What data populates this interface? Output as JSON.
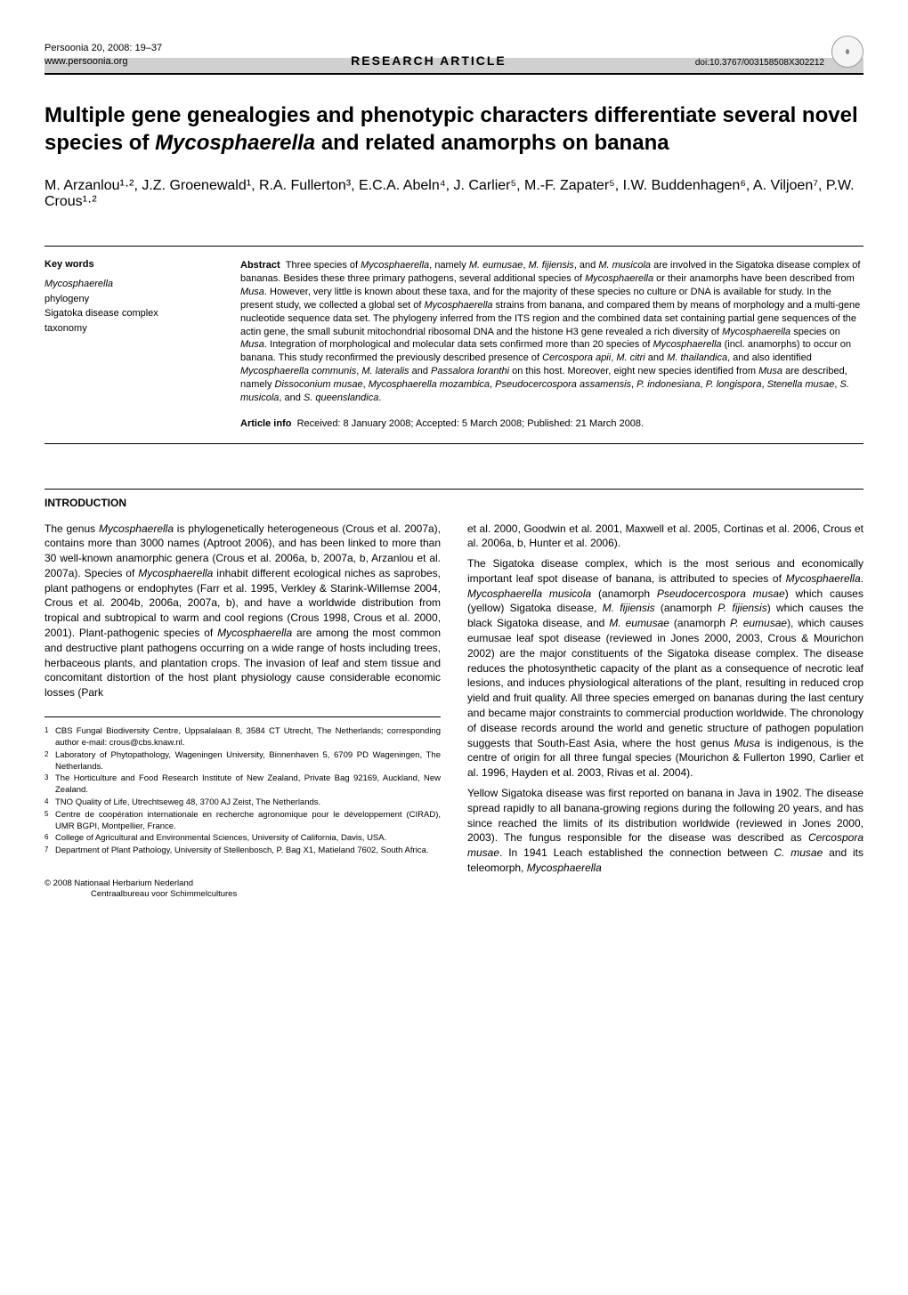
{
  "header": {
    "journal_line": "Persoonia 20, 2008: 19–37",
    "website": "www.persoonia.org",
    "section_label": "RESEARCH  ARTICLE",
    "doi": "doi:10.3767/003158508X302212"
  },
  "title_parts": {
    "pre": "Multiple gene genealogies and phenotypic characters differentiate several novel species of ",
    "italic": "Mycosphaerella",
    "post": " and related anamorphs on banana"
  },
  "authors": "M. Arzanlou¹·², J.Z. Groenewald¹, R.A. Fullerton³, E.C.A. Abeln⁴, J. Carlier⁵, M.-F. Zapater⁵, I.W. Buddenhagen⁶, A. Viljoen⁷, P.W. Crous¹·²",
  "keywords": {
    "heading": "Key words",
    "items": [
      "Mycosphaerella",
      "phylogeny",
      "Sigatoka disease complex",
      "taxonomy"
    ],
    "italic_indices": [
      0
    ]
  },
  "abstract": {
    "label": "Abstract",
    "text_html": "Three species of <em>Mycosphaerella</em>, namely <em>M. eumusae</em>, <em>M. fijiensis</em>, and <em>M. musicola</em> are involved in the Sigatoka disease complex of bananas. Besides these three primary pathogens, several additional species of <em>Mycosphaerella</em> or their anamorphs have been described from <em>Musa</em>. However, very little is known about these taxa, and for the majority of these species no culture or DNA is available for study. In the present study, we collected a global set of <em>Mycosphaerella</em> strains from banana, and compared them by means of morphology and a multi-gene nucleotide sequence data set. The phylogeny inferred from the ITS region and the combined data set containing partial gene sequences of the actin gene, the small subunit mitochondrial ribosomal DNA and the histone H3 gene revealed a rich diversity of <em>Mycosphaerella</em> species on <em>Musa</em>. Integration of morphological and molecular data sets confirmed more than 20 species of <em>Mycosphaerella</em> (incl. anamorphs) to occur on banana. This study reconfirmed the previously described presence of <em>Cercospora apii</em>, <em>M. citri</em> and <em>M. thailandica</em>, and also identified <em>Mycosphaerella communis</em>, <em>M. lateralis</em> and <em>Passalora loranthi</em> on this host. Moreover, eight new species identified from <em>Musa</em> are described, namely <em>Dissoconium musae</em>, <em>Mycosphaerella mozambica</em>, <em>Pseudocercospora assamensis</em>, <em>P. indonesiana</em>, <em>P. longispora</em>, <em>Stenella musae</em>, <em>S. musicola</em>, and <em>S. queenslandica</em>."
  },
  "article_info": {
    "label": "Article info",
    "text": "Received: 8 January 2008; Accepted: 5 March 2008; Published: 21 March 2008."
  },
  "intro_heading": "INTRODUCTION",
  "col_left_html": "The genus <em>Mycosphaerella</em> is phylogenetically heterogeneous (Crous et al. 2007a), contains more than 3000 names (Aptroot 2006), and has been linked to more than 30 well-known anamorphic genera (Crous et al. 2006a, b, 2007a, b, Arzanlou et al. 2007a). Species of <em>Mycosphaerella</em> inhabit different ecological niches as saprobes, plant pathogens or endophytes (Farr et al. 1995, Verkley & Starink-Willemse 2004, Crous et al. 2004b, 2006a, 2007a, b), and have a worldwide distribution from tropical and subtropical to warm and cool regions (Crous 1998, Crous et al. 2000, 2001). Plant-pathogenic species of <em>Mycosphaerella</em> are among the most common and destructive plant pathogens occurring on a wide range of hosts including trees, herbaceous plants, and plantation crops. The invasion of leaf and stem tissue and concomitant distortion of the host plant physiology cause considerable economic losses (Park",
  "col_right_top_html": "et al. 2000, Goodwin et al. 2001, Maxwell et al. 2005, Cortinas et al. 2006, Crous et al. 2006a, b, Hunter et al. 2006).",
  "col_right_p2_html": "The Sigatoka disease complex, which is the most serious and economically important leaf spot disease of banana, is attributed to species of <em>Mycosphaerella</em>. <em>Mycosphaerella musicola</em> (anamorph <em>Pseudocercospora musae</em>) which causes (yellow) Sigatoka disease, <em>M. fijiensis</em> (anamorph <em>P. fijiensis</em>) which causes the black Sigatoka disease, and <em>M. eumusae</em> (anamorph <em>P. eumusae</em>), which causes eumusae leaf spot disease (reviewed in Jones 2000, 2003, Crous & Mourichon 2002) are the major constituents of the Sigatoka disease complex. The disease reduces the photosynthetic capacity of the plant as a consequence of necrotic leaf lesions, and induces physiological alterations of the plant, resulting in reduced crop yield and fruit quality. All three species emerged on bananas during the last century and became major constraints to commercial production worldwide. The chronology of disease records around the world and genetic structure of pathogen population suggests that South-East Asia, where the host genus <em>Musa</em> is indigenous, is the centre of origin for all three fungal species (Mourichon & Fullerton 1990, Carlier et al. 1996, Hayden et al. 2003, Rivas et al. 2004).",
  "col_right_p3_html": "Yellow Sigatoka disease was first reported on banana in Java in 1902. The disease spread rapidly to all banana-growing regions during the following 20 years, and has since reached the limits of its distribution worldwide (reviewed in Jones 2000, 2003). The fungus responsible for the disease was described as <em>Cercospora musae</em>. In 1941 Leach established the connection between <em>C. musae</em> and its teleomorph, <em>Mycosphaerella</em>",
  "affiliations": [
    {
      "num": "1",
      "text": "CBS Fungal Biodiversity Centre, Uppsalalaan 8, 3584 CT Utrecht, The Netherlands; corresponding author e-mail: crous@cbs.knaw.nl."
    },
    {
      "num": "2",
      "text": "Laboratory of Phytopathology, Wageningen University, Binnenhaven 5, 6709 PD Wageningen, The Netherlands."
    },
    {
      "num": "3",
      "text": "The Horticulture and Food Research Institute of New Zealand, Private Bag 92169, Auckland, New Zealand."
    },
    {
      "num": "4",
      "text": "TNO Quality of Life, Utrechtseweg 48, 3700 AJ Zeist, The Netherlands."
    },
    {
      "num": "5",
      "text": "Centre de coopération internationale en recherche agronomique pour le développement (CIRAD), UMR BGPI, Montpellier, France."
    },
    {
      "num": "6",
      "text": "College of Agricultural and Environmental Sciences, University of California, Davis, USA."
    },
    {
      "num": "7",
      "text": "Department of Plant Pathology, University of Stellenbosch, P. Bag X1, Matieland 7602, South Africa."
    }
  ],
  "copyright": {
    "line1": "© 2008   Nationaal Herbarium Nederland",
    "line2": "Centraalbureau voor Schimmelcultures"
  }
}
